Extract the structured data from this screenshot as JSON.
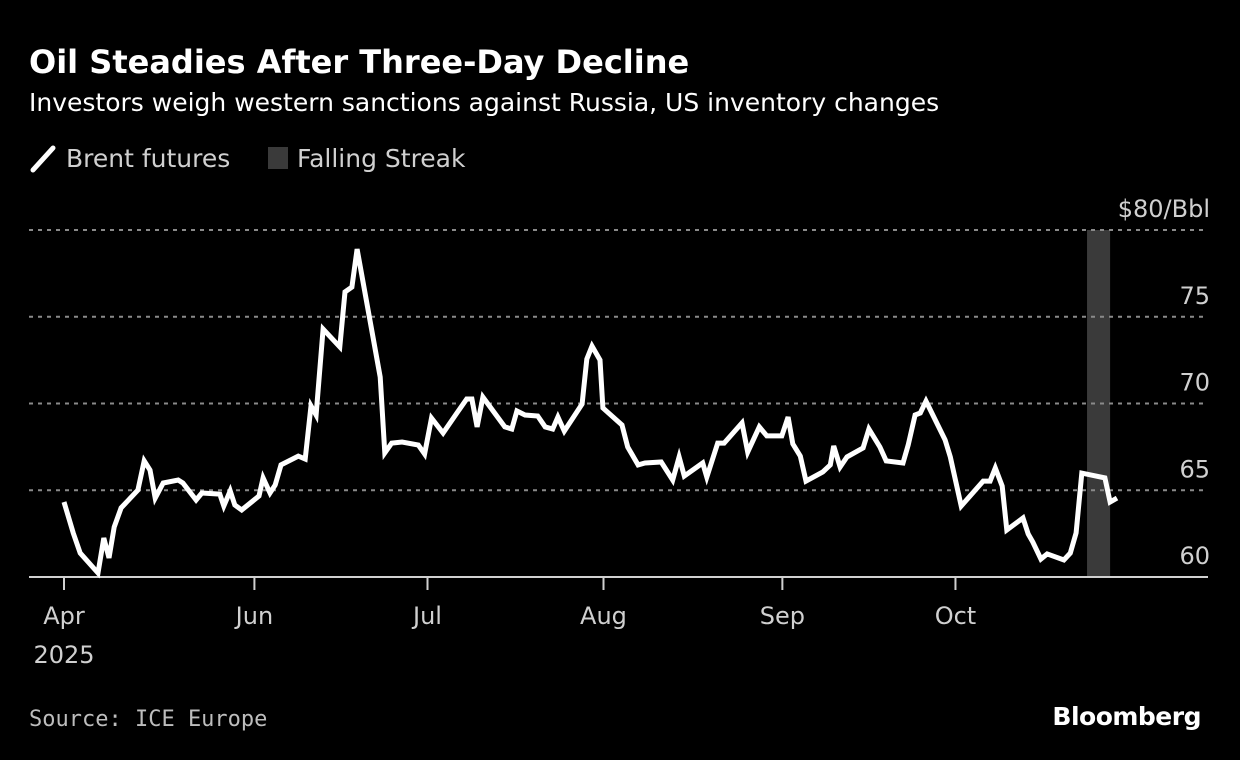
{
  "chart_data": {
    "type": "line",
    "title": "Oil Steadies After Three-Day Decline",
    "subtitle": "Investors weigh western sanctions against Russia, US inventory changes",
    "legend": [
      {
        "label": "Brent futures",
        "color": "#ffffff",
        "kind": "line"
      },
      {
        "label": "Falling Streak",
        "color": "#3a3a3a",
        "kind": "box"
      }
    ],
    "legend_placement": "top-left",
    "ylabel_unit": "$80/Bbl",
    "ylim": [
      60,
      80
    ],
    "yticks": [
      {
        "value": 80,
        "label": "$80/Bbl"
      },
      {
        "value": 75,
        "label": "75"
      },
      {
        "value": 70,
        "label": "70"
      },
      {
        "value": 65,
        "label": "65"
      },
      {
        "value": 60,
        "label": "60"
      }
    ],
    "x_unit": "approx. days from first tick",
    "xticks": [
      {
        "value": 0,
        "label": "Apr",
        "sublabel": "2025"
      },
      {
        "value": 33,
        "label": "Jun"
      },
      {
        "value": 63,
        "label": "Jul"
      },
      {
        "value": 93.5,
        "label": "Aug"
      },
      {
        "value": 124.5,
        "label": "Sep"
      },
      {
        "value": 154.5,
        "label": "Oct"
      }
    ],
    "falling_streak": [
      177.3,
      181.3
    ],
    "series": [
      {
        "name": "Brent futures",
        "points": [
          [
            0,
            64.32
          ],
          [
            1.6,
            62.54
          ],
          [
            2.8,
            61.38
          ],
          [
            5.9,
            60.23
          ],
          [
            6.9,
            62.25
          ],
          [
            7.8,
            61.1
          ],
          [
            8.7,
            62.88
          ],
          [
            9.9,
            63.98
          ],
          [
            12.8,
            65.01
          ],
          [
            13.9,
            66.69
          ],
          [
            14.9,
            66.17
          ],
          [
            15.8,
            64.55
          ],
          [
            17.2,
            65.42
          ],
          [
            19.8,
            65.59
          ],
          [
            20.6,
            65.42
          ],
          [
            22.9,
            64.44
          ],
          [
            23.9,
            64.84
          ],
          [
            27.0,
            64.78
          ],
          [
            27.7,
            64.09
          ],
          [
            28.8,
            64.96
          ],
          [
            29.6,
            64.15
          ],
          [
            30.8,
            63.86
          ],
          [
            33.8,
            64.67
          ],
          [
            34.5,
            65.71
          ],
          [
            35.7,
            64.84
          ],
          [
            36.6,
            65.3
          ],
          [
            37.6,
            66.46
          ],
          [
            40.6,
            66.97
          ],
          [
            41.8,
            66.8
          ],
          [
            42.8,
            69.86
          ],
          [
            43.7,
            69.34
          ],
          [
            44.9,
            74.29
          ],
          [
            47.8,
            73.26
          ],
          [
            48.7,
            76.43
          ],
          [
            49.9,
            76.71
          ],
          [
            50.8,
            78.9
          ],
          [
            54.8,
            71.53
          ],
          [
            55.6,
            67.15
          ],
          [
            56.8,
            67.72
          ],
          [
            58.6,
            67.78
          ],
          [
            61.4,
            67.61
          ],
          [
            62.5,
            67.09
          ],
          [
            63.7,
            69.16
          ],
          [
            65.7,
            68.3
          ],
          [
            68.1,
            69.45
          ],
          [
            69.8,
            70.26
          ],
          [
            70.7,
            70.26
          ],
          [
            71.6,
            68.65
          ],
          [
            72.6,
            70.37
          ],
          [
            76.4,
            68.65
          ],
          [
            77.6,
            68.53
          ],
          [
            78.5,
            69.57
          ],
          [
            79.9,
            69.34
          ],
          [
            82.1,
            69.28
          ],
          [
            83.4,
            68.65
          ],
          [
            84.7,
            68.53
          ],
          [
            85.6,
            69.22
          ],
          [
            86.7,
            68.41
          ],
          [
            89.8,
            69.97
          ],
          [
            90.6,
            72.56
          ],
          [
            91.5,
            73.31
          ],
          [
            92.9,
            72.51
          ],
          [
            93.4,
            69.74
          ],
          [
            96.7,
            68.76
          ],
          [
            97.7,
            67.49
          ],
          [
            99.5,
            66.46
          ],
          [
            100.7,
            66.57
          ],
          [
            103.5,
            66.63
          ],
          [
            105.5,
            65.59
          ],
          [
            106.6,
            66.92
          ],
          [
            107.5,
            65.82
          ],
          [
            110.7,
            66.57
          ],
          [
            111.4,
            65.76
          ],
          [
            113.3,
            67.72
          ],
          [
            114.4,
            67.72
          ],
          [
            117.5,
            68.88
          ],
          [
            118.5,
            67.2
          ],
          [
            120.5,
            68.65
          ],
          [
            121.8,
            68.13
          ],
          [
            124.4,
            68.13
          ],
          [
            125.5,
            69.22
          ],
          [
            126.3,
            67.67
          ],
          [
            127.6,
            66.97
          ],
          [
            128.6,
            65.53
          ],
          [
            131.5,
            66.05
          ],
          [
            132.8,
            66.46
          ],
          [
            133.4,
            67.55
          ],
          [
            134.5,
            66.34
          ],
          [
            135.7,
            66.92
          ],
          [
            138.5,
            67.44
          ],
          [
            139.5,
            68.53
          ],
          [
            141.4,
            67.49
          ],
          [
            142.5,
            66.69
          ],
          [
            145.4,
            66.57
          ],
          [
            146.3,
            67.61
          ],
          [
            147.5,
            69.34
          ],
          [
            148.4,
            69.45
          ],
          [
            149.4,
            70.14
          ],
          [
            152.7,
            67.9
          ],
          [
            153.6,
            66.92
          ],
          [
            155.5,
            64.09
          ],
          [
            159.3,
            65.53
          ],
          [
            160.5,
            65.53
          ],
          [
            161.4,
            66.28
          ],
          [
            162.6,
            65.24
          ],
          [
            163.4,
            62.71
          ],
          [
            166.2,
            63.4
          ],
          [
            167.1,
            62.48
          ],
          [
            167.9,
            62.02
          ],
          [
            169.3,
            61.04
          ],
          [
            170.4,
            61.33
          ],
          [
            173.3,
            60.98
          ],
          [
            174.4,
            61.38
          ],
          [
            175.4,
            62.54
          ],
          [
            176.4,
            65.99
          ],
          [
            180.4,
            65.71
          ],
          [
            181.3,
            64.32
          ],
          [
            182.5,
            64.55
          ]
        ]
      }
    ],
    "grid": true,
    "source": "Source: ICE Europe",
    "brand": "Bloomberg"
  }
}
